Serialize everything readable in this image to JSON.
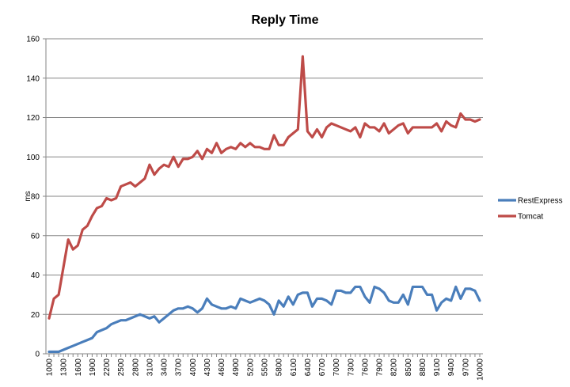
{
  "chart_data": {
    "type": "line",
    "title": "Reply Time",
    "xlabel": "",
    "ylabel": "ms",
    "ylim": [
      0,
      160
    ],
    "yticks": [
      0,
      20,
      40,
      60,
      80,
      100,
      120,
      140,
      160
    ],
    "grid": true,
    "legend_position": "right",
    "x": [
      1000,
      1100,
      1200,
      1300,
      1400,
      1500,
      1600,
      1700,
      1800,
      1900,
      2000,
      2100,
      2200,
      2300,
      2400,
      2500,
      2600,
      2700,
      2800,
      2900,
      3000,
      3100,
      3200,
      3300,
      3400,
      3500,
      3600,
      3700,
      3800,
      3900,
      4000,
      4100,
      4200,
      4300,
      4400,
      4500,
      4600,
      4700,
      4800,
      4900,
      5000,
      5100,
      5200,
      5300,
      5400,
      5500,
      5600,
      5700,
      5800,
      5900,
      6000,
      6100,
      6200,
      6300,
      6400,
      6500,
      6600,
      6700,
      6800,
      6900,
      7000,
      7100,
      7200,
      7300,
      7400,
      7500,
      7600,
      7700,
      7800,
      7900,
      8000,
      8100,
      8200,
      8300,
      8400,
      8500,
      8600,
      8700,
      8800,
      8900,
      9000,
      9100,
      9200,
      9300,
      9400,
      9500,
      9600,
      9700,
      9800,
      9900,
      10000
    ],
    "x_tick_labels": [
      "1000",
      "1300",
      "1600",
      "1900",
      "2200",
      "2500",
      "2800",
      "3100",
      "3400",
      "3700",
      "4000",
      "4300",
      "4600",
      "4900",
      "5200",
      "5500",
      "5800",
      "6100",
      "6400",
      "6700",
      "7000",
      "7300",
      "7600",
      "7900",
      "8200",
      "8500",
      "8800",
      "9100",
      "9400",
      "9700",
      "10000"
    ],
    "series": [
      {
        "name": "RestExpress",
        "color": "#4a7ebb",
        "values": [
          1,
          1,
          1,
          2,
          3,
          4,
          5,
          6,
          7,
          8,
          11,
          12,
          13,
          15,
          16,
          17,
          17,
          18,
          19,
          20,
          19,
          18,
          19,
          16,
          18,
          20,
          22,
          23,
          23,
          24,
          23,
          21,
          23,
          28,
          25,
          24,
          23,
          23,
          24,
          23,
          28,
          27,
          26,
          27,
          28,
          27,
          25,
          20,
          27,
          24,
          29,
          25,
          30,
          31,
          31,
          24,
          28,
          28,
          27,
          25,
          32,
          32,
          31,
          31,
          34,
          34,
          29,
          26,
          34,
          33,
          31,
          27,
          26,
          26,
          30,
          25,
          34,
          34,
          34,
          30,
          30,
          22,
          26,
          28,
          27,
          34,
          28,
          33,
          33,
          32,
          27
        ]
      },
      {
        "name": "Tomcat",
        "color": "#be4b48",
        "values": [
          18,
          28,
          30,
          44,
          58,
          53,
          55,
          63,
          65,
          70,
          74,
          75,
          79,
          78,
          79,
          85,
          86,
          87,
          85,
          87,
          89,
          96,
          91,
          94,
          96,
          95,
          100,
          95,
          99,
          99,
          100,
          103,
          99,
          104,
          102,
          107,
          102,
          104,
          105,
          104,
          107,
          105,
          107,
          105,
          105,
          104,
          104,
          111,
          106,
          106,
          110,
          112,
          114,
          151,
          113,
          110,
          114,
          110,
          115,
          117,
          116,
          115,
          114,
          113,
          115,
          110,
          117,
          115,
          115,
          113,
          117,
          112,
          114,
          116,
          117,
          112,
          115,
          115,
          115,
          115,
          115,
          117,
          113,
          118,
          116,
          115,
          122,
          119,
          119,
          118,
          119
        ]
      }
    ]
  }
}
